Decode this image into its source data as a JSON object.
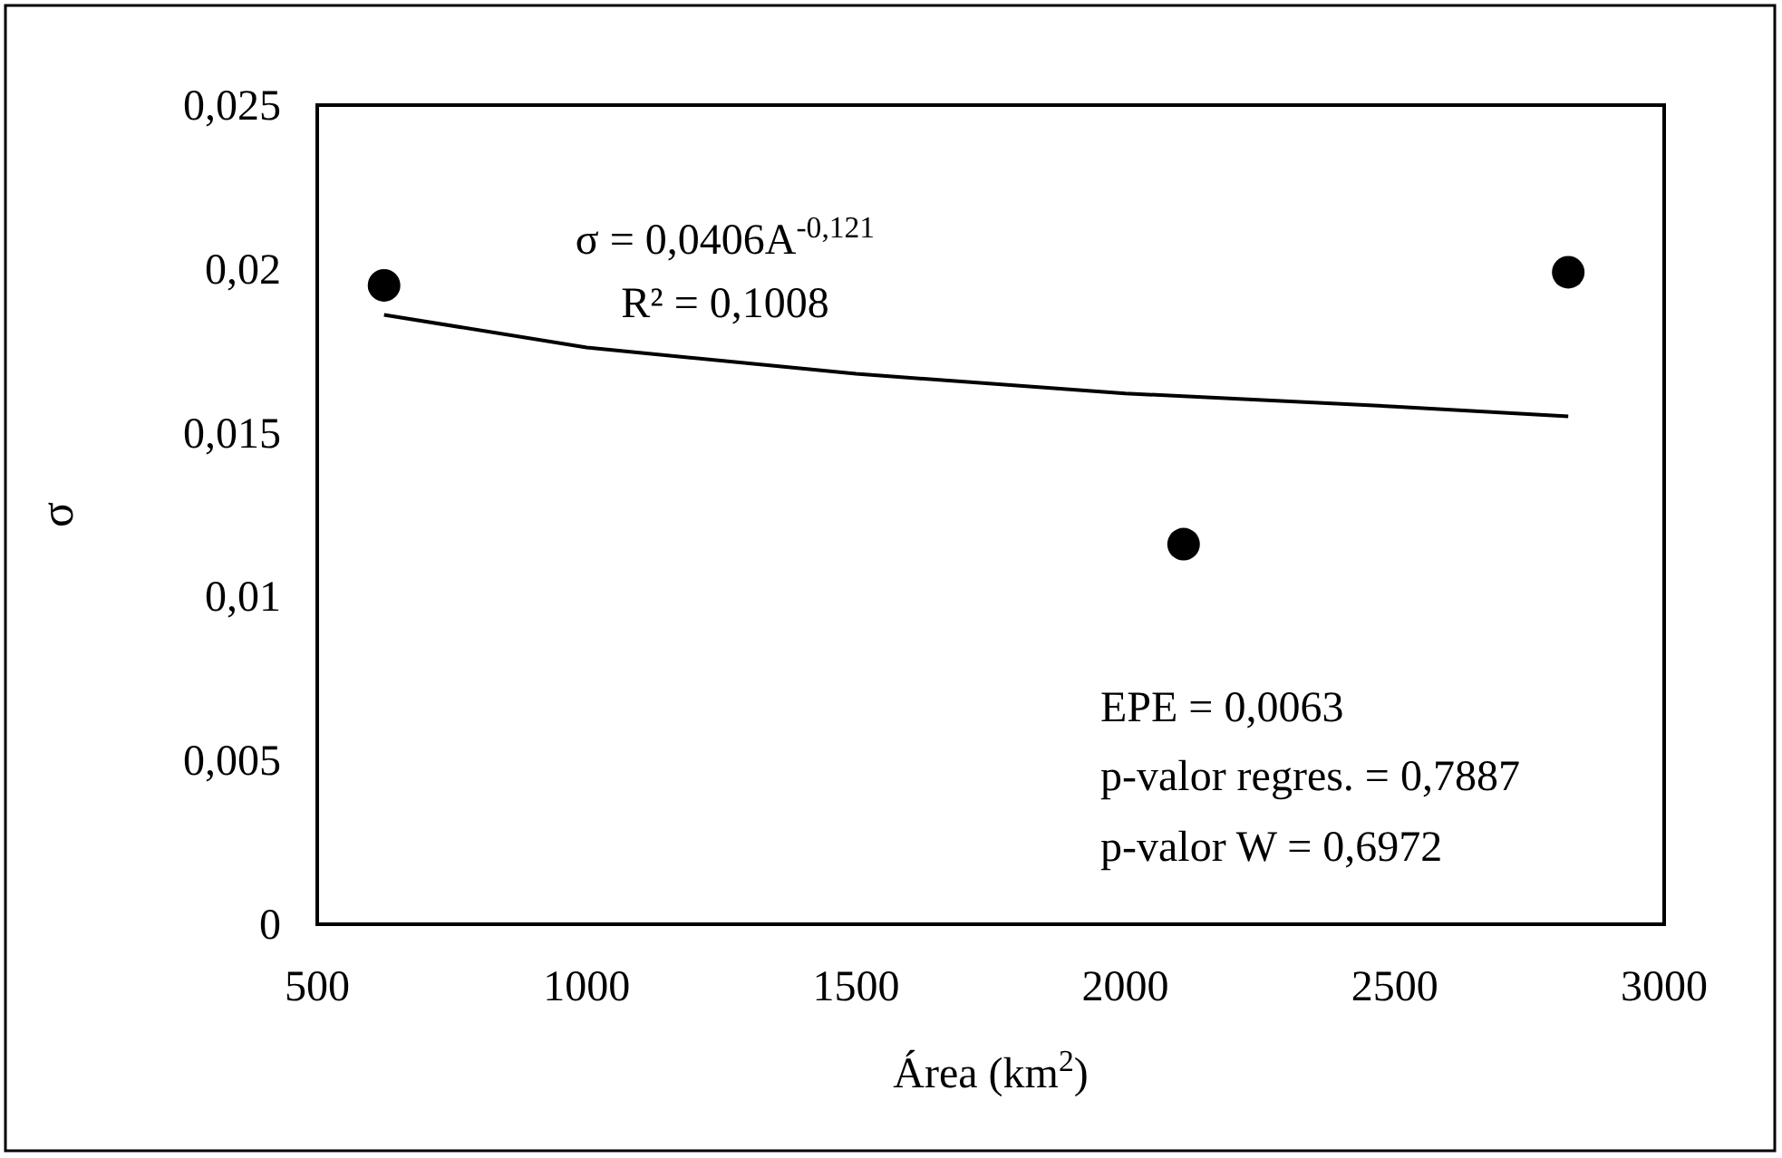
{
  "chart_data": {
    "type": "scatter",
    "xlabel": "Área (km$^{2}$)",
    "ylabel": "σ",
    "xlim": [
      500,
      3000
    ],
    "xticks": [
      500,
      1000,
      1500,
      2000,
      2500,
      3000
    ],
    "ylim": [
      0,
      0.025
    ],
    "yticks": [
      {
        "value": 0,
        "label": "0"
      },
      {
        "value": 0.005,
        "label": "0,005"
      },
      {
        "value": 0.01,
        "label": "0,01"
      },
      {
        "value": 0.015,
        "label": "0,015"
      },
      {
        "value": 0.02,
        "label": "0,02"
      },
      {
        "value": 0.025,
        "label": "0,025"
      }
    ],
    "series": [
      {
        "color": "#000000",
        "marker": "circle",
        "x": [
          624,
          2108,
          2822
        ],
        "values": [
          0.0195,
          0.0116,
          0.0199
        ]
      },
      {
        "type": "line",
        "color": "#000000",
        "marker": "none",
        "line_style": "solid",
        "x": [
          624,
          1000,
          1500,
          2000,
          2500,
          2822
        ],
        "values": [
          0.0186,
          0.0176,
          0.0168,
          0.0162,
          0.0158,
          0.0155
        ]
      }
    ],
    "annotations": [
      "σ = 0,0406A$^{-0,121}$",
      "R² = 0,1008",
      "EPE = 0,0063",
      "p-valor regres. = 0,7887",
      "p-valor W = 0,6972"
    ]
  }
}
